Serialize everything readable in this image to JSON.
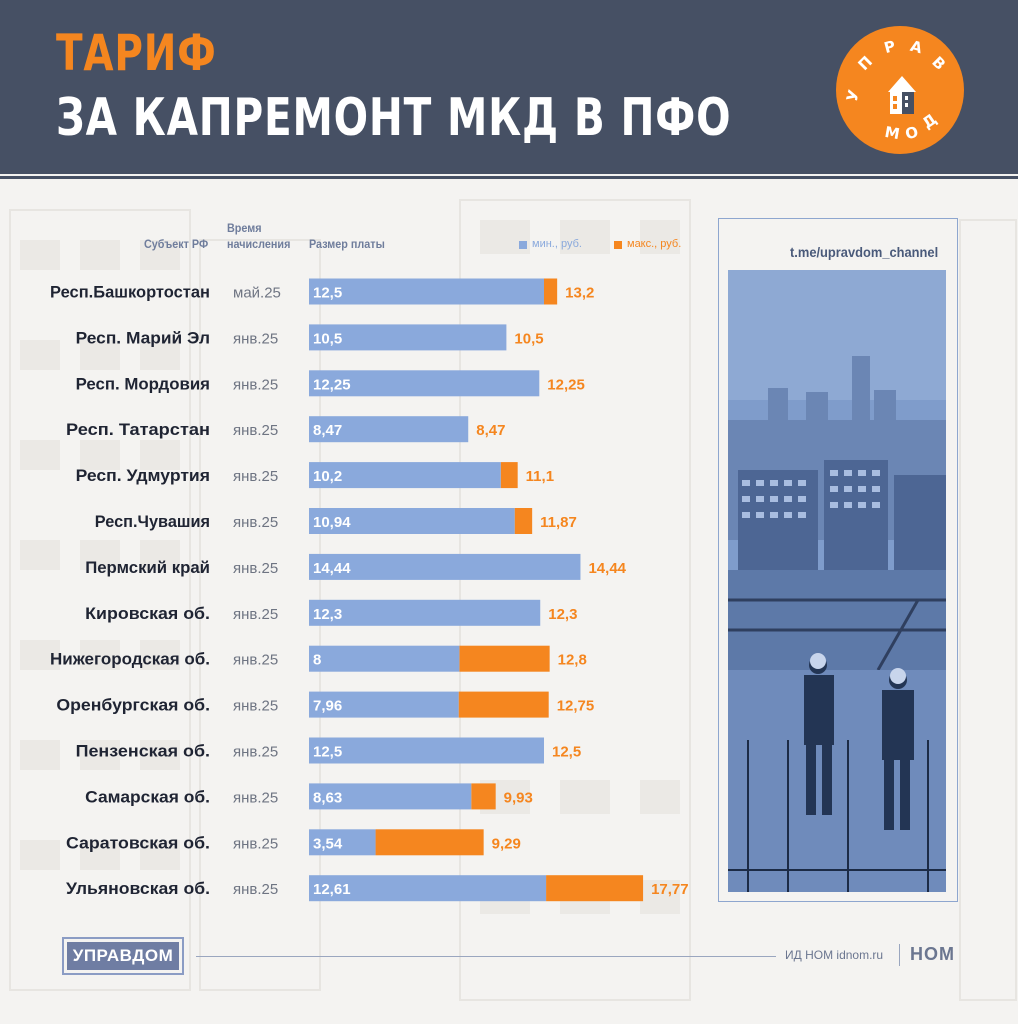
{
  "header": {
    "title_line1": "ТАРИФ",
    "title_line2": "ЗА КАПРЕМОНТ МКД В ПФО",
    "logo_text": "УПРАВДОМ"
  },
  "columns": {
    "subject": "Субъект РФ",
    "time_line1": "Время",
    "time_line2": "начисления",
    "size": "Размер платы"
  },
  "colors": {
    "min": "#8aa9dc",
    "max": "#f5861f",
    "header_bg": "#465064",
    "label_text": "#1f2433",
    "date_text": "#6e7482"
  },
  "chart_data": {
    "type": "bar",
    "categories": [
      "Респ.Башкортостан",
      "Респ. Марий Эл",
      "Респ. Мордовия",
      "Респ. Татарстан",
      "Респ. Удмуртия",
      "Респ.Чувашия",
      "Пермский край",
      "Кировская об.",
      "Нижегородская об.",
      "Оренбургская об.",
      "Пензенская об.",
      "Самарская об.",
      "Саратовская об.",
      "Ульяновская об."
    ],
    "dates": [
      "май.25",
      "янв.25",
      "янв.25",
      "янв.25",
      "янв.25",
      "янв.25",
      "янв.25",
      "янв.25",
      "янв.25",
      "янв.25",
      "янв.25",
      "янв.25",
      "янв.25",
      "янв.25"
    ],
    "series": [
      {
        "name": "мин., руб.",
        "values": [
          12.5,
          10.5,
          12.25,
          8.47,
          10.2,
          10.94,
          14.44,
          12.3,
          8,
          7.96,
          12.5,
          8.63,
          3.54,
          12.61
        ],
        "labels": [
          "12,5",
          "10,5",
          "12,25",
          "8,47",
          "10,2",
          "10,94",
          "14,44",
          "12,3",
          "8",
          "7,96",
          "12,5",
          "8,63",
          "3,54",
          "12,61"
        ]
      },
      {
        "name": "макс., руб.",
        "values": [
          13.2,
          10.5,
          12.25,
          8.47,
          11.1,
          11.87,
          14.44,
          12.3,
          12.8,
          12.75,
          12.5,
          9.93,
          9.29,
          17.77
        ],
        "labels": [
          "13,2",
          "10,5",
          "12,25",
          "8,47",
          "11,1",
          "11,87",
          "14,44",
          "12,3",
          "12,8",
          "12,75",
          "12,5",
          "9,93",
          "9,29",
          "17,77"
        ]
      }
    ],
    "xlim": [
      0,
      18
    ],
    "grid": false,
    "legend_position": "top-right"
  },
  "photo_panel": {
    "channel": "t.me/upravdom_channel"
  },
  "footer": {
    "brand": "УПРАВДОМ",
    "credit": "ИД НОМ idnom.ru",
    "logo": "НОМ"
  }
}
